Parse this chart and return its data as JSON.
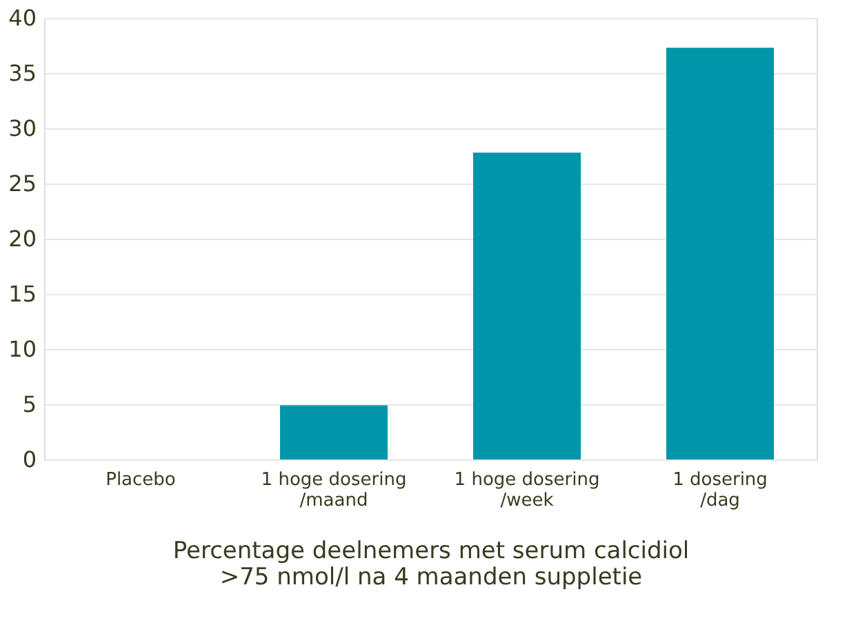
{
  "chart_data": {
    "type": "bar",
    "categories": [
      "Placebo",
      "1 hoge dosering\n/maand",
      "1 hoge dosering\n/week",
      "1 dosering\n/dag"
    ],
    "values": [
      0,
      4.9,
      27.8,
      37.3
    ],
    "color": "#0096a9",
    "xlabel": "Percentage deelnemers met serum calcidiol\n>75 nmol/l na 4 maanden suppletie",
    "ylim": [
      0,
      40
    ],
    "yticks": [
      0,
      5,
      10,
      15,
      20,
      25,
      30,
      35,
      40
    ],
    "grid": "y"
  }
}
